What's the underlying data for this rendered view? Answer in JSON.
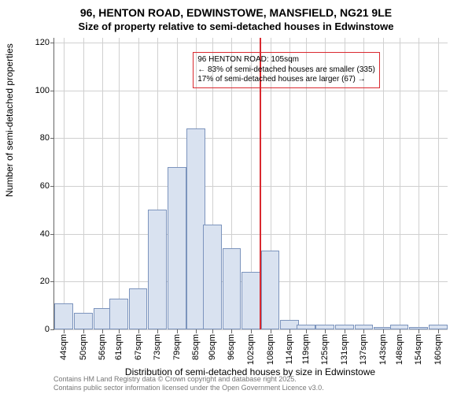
{
  "title_main": "96, HENTON ROAD, EDWINSTOWE, MANSFIELD, NG21 9LE",
  "title_sub": "Size of property relative to semi-detached houses in Edwinstowe",
  "ylabel": "Number of semi-detached properties",
  "xlabel": "Distribution of semi-detached houses by size in Edwinstowe",
  "footer_line1": "Contains HM Land Registry data © Crown copyright and database right 2025.",
  "footer_line2": "Contains public sector information licensed under the Open Government Licence v3.0.",
  "chart": {
    "type": "histogram",
    "background_color": "#ffffff",
    "grid_color": "#d0d0d0",
    "axis_color": "#666666",
    "bar_fill": "#d9e2f0",
    "bar_border": "#7c94bd",
    "ref_line_color": "#d9292f",
    "ref_line_x": 105,
    "annotation_border": "#d9292f",
    "annotation_line1": "96 HENTON ROAD: 105sqm",
    "annotation_line2": "← 83% of semi-detached houses are smaller (335)",
    "annotation_line3": "17% of semi-detached houses are larger (67) →",
    "xlim": [
      41,
      163
    ],
    "ylim": [
      0,
      122
    ],
    "yticks": [
      0,
      20,
      40,
      60,
      80,
      100,
      120
    ],
    "xticks": [
      44,
      50,
      56,
      61,
      67,
      73,
      79,
      85,
      90,
      96,
      102,
      108,
      114,
      119,
      125,
      131,
      137,
      143,
      148,
      154,
      160
    ],
    "xtick_suffix": "sqm",
    "bar_width": 5.8,
    "bars": [
      {
        "x": 44,
        "y": 11
      },
      {
        "x": 50,
        "y": 7
      },
      {
        "x": 56,
        "y": 9
      },
      {
        "x": 61,
        "y": 13
      },
      {
        "x": 67,
        "y": 17
      },
      {
        "x": 73,
        "y": 50
      },
      {
        "x": 79,
        "y": 68
      },
      {
        "x": 85,
        "y": 84
      },
      {
        "x": 90,
        "y": 44
      },
      {
        "x": 96,
        "y": 34
      },
      {
        "x": 102,
        "y": 24
      },
      {
        "x": 108,
        "y": 33
      },
      {
        "x": 114,
        "y": 4
      },
      {
        "x": 119,
        "y": 2
      },
      {
        "x": 125,
        "y": 2
      },
      {
        "x": 131,
        "y": 2
      },
      {
        "x": 137,
        "y": 2
      },
      {
        "x": 143,
        "y": 1
      },
      {
        "x": 148,
        "y": 2
      },
      {
        "x": 154,
        "y": 1
      },
      {
        "x": 160,
        "y": 2
      }
    ],
    "title_fontsize": 14,
    "subtitle_fontsize": 13,
    "label_fontsize": 12,
    "tick_fontsize": 11,
    "annotation_fontsize": 10,
    "footer_fontsize": 9,
    "footer_color": "#777777"
  }
}
